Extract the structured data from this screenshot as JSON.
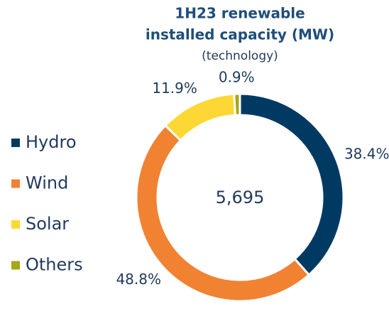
{
  "chart_data": {
    "type": "donut",
    "title": [
      "1H23 renewable",
      "installed capacity (MW)"
    ],
    "subtitle": "(technology)",
    "center_text": "5,695",
    "categories": [
      "Hydro",
      "Wind",
      "Solar",
      "Others"
    ],
    "values": [
      38.4,
      48.8,
      11.9,
      0.9
    ],
    "value_labels": [
      "38.4%",
      "48.8%",
      "11.9%",
      "0.9%"
    ],
    "colors": [
      "#003a63",
      "#f08232",
      "#fdd835",
      "#a4a81a"
    ],
    "legend": "left"
  }
}
